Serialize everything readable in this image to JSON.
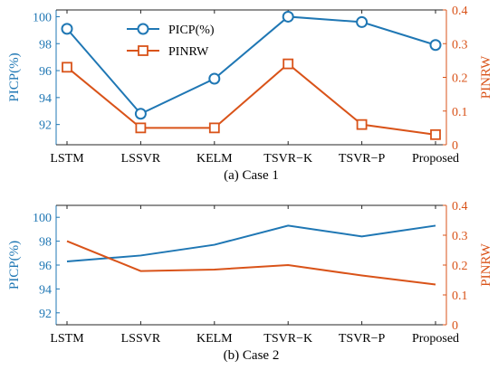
{
  "colors": {
    "left": "#1f77b4",
    "right": "#d95319",
    "axis": "#262626"
  },
  "chart_data": [
    {
      "type": "line",
      "caption": "(a) Case 1",
      "categories": [
        "LSTM",
        "LSSVR",
        "KELM",
        "TSVR−K",
        "TSVR−P",
        "Proposed"
      ],
      "ylabel": "PICP(%)",
      "ylabel_right": "PINRW",
      "ylim": [
        90.5,
        100.5
      ],
      "ylim_right": [
        0,
        0.4
      ],
      "yticks": [
        92,
        94,
        96,
        98,
        100
      ],
      "yticks_right": [
        0,
        0.1,
        0.2,
        0.3,
        0.4
      ],
      "grid": false,
      "legend": {
        "placement": "top-left"
      },
      "series": [
        {
          "name": "PICP(%)",
          "axis": "left",
          "marker": "circle",
          "values": [
            99.1,
            92.8,
            95.4,
            100.0,
            99.6,
            97.9
          ]
        },
        {
          "name": "PINRW",
          "axis": "right",
          "marker": "square",
          "values": [
            0.23,
            0.05,
            0.05,
            0.24,
            0.06,
            0.03
          ]
        }
      ]
    },
    {
      "type": "line",
      "caption": "(b) Case 2",
      "categories": [
        "LSTM",
        "LSSVR",
        "KELM",
        "TSVR−K",
        "TSVR−P",
        "Proposed"
      ],
      "ylabel": "PICP(%)",
      "ylabel_right": "PINRW",
      "ylim": [
        91,
        101
      ],
      "ylim_right": [
        0,
        0.4
      ],
      "yticks": [
        92,
        94,
        96,
        98,
        100
      ],
      "yticks_right": [
        0,
        0.1,
        0.2,
        0.3,
        0.4
      ],
      "grid": false,
      "series": [
        {
          "axis": "left",
          "values": [
            96.3,
            96.8,
            97.7,
            99.3,
            98.4,
            99.3
          ]
        },
        {
          "axis": "right",
          "values": [
            0.28,
            0.18,
            0.185,
            0.2,
            0.165,
            0.135
          ]
        }
      ]
    }
  ]
}
